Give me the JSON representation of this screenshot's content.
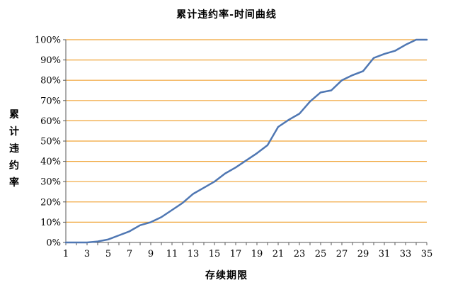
{
  "chart_data": {
    "type": "line",
    "title": "累计违约率-时间曲线",
    "xlabel": "存续期限",
    "ylabel": "累计违约率",
    "x": [
      1,
      2,
      3,
      4,
      5,
      6,
      7,
      8,
      9,
      10,
      11,
      12,
      13,
      14,
      15,
      16,
      17,
      18,
      19,
      20,
      21,
      22,
      23,
      24,
      25,
      26,
      27,
      28,
      29,
      30,
      31,
      32,
      33,
      34,
      35
    ],
    "xticks": [
      1,
      3,
      5,
      7,
      9,
      11,
      13,
      15,
      17,
      19,
      21,
      23,
      25,
      27,
      29,
      31,
      33,
      35
    ],
    "xlim": [
      1,
      35
    ],
    "yticks": [
      0,
      10,
      20,
      30,
      40,
      50,
      60,
      70,
      80,
      90,
      100
    ],
    "ytick_suffix": "%",
    "ylim": [
      0,
      100
    ],
    "grid": "horizontal",
    "series": [
      {
        "values": [
          0,
          0,
          0,
          0.5,
          1.5,
          3.5,
          5.5,
          8.5,
          10,
          12.5,
          16,
          19.5,
          24,
          27,
          30,
          34,
          37,
          40.5,
          44,
          48,
          57,
          60.5,
          63.5,
          69.5,
          74,
          75,
          80,
          82.5,
          84.5,
          91,
          93,
          94.5,
          97.5,
          100,
          100
        ]
      }
    ],
    "colors": {
      "line": "#4F77B3",
      "grid": "#F0A436",
      "axis": "#595959"
    }
  }
}
